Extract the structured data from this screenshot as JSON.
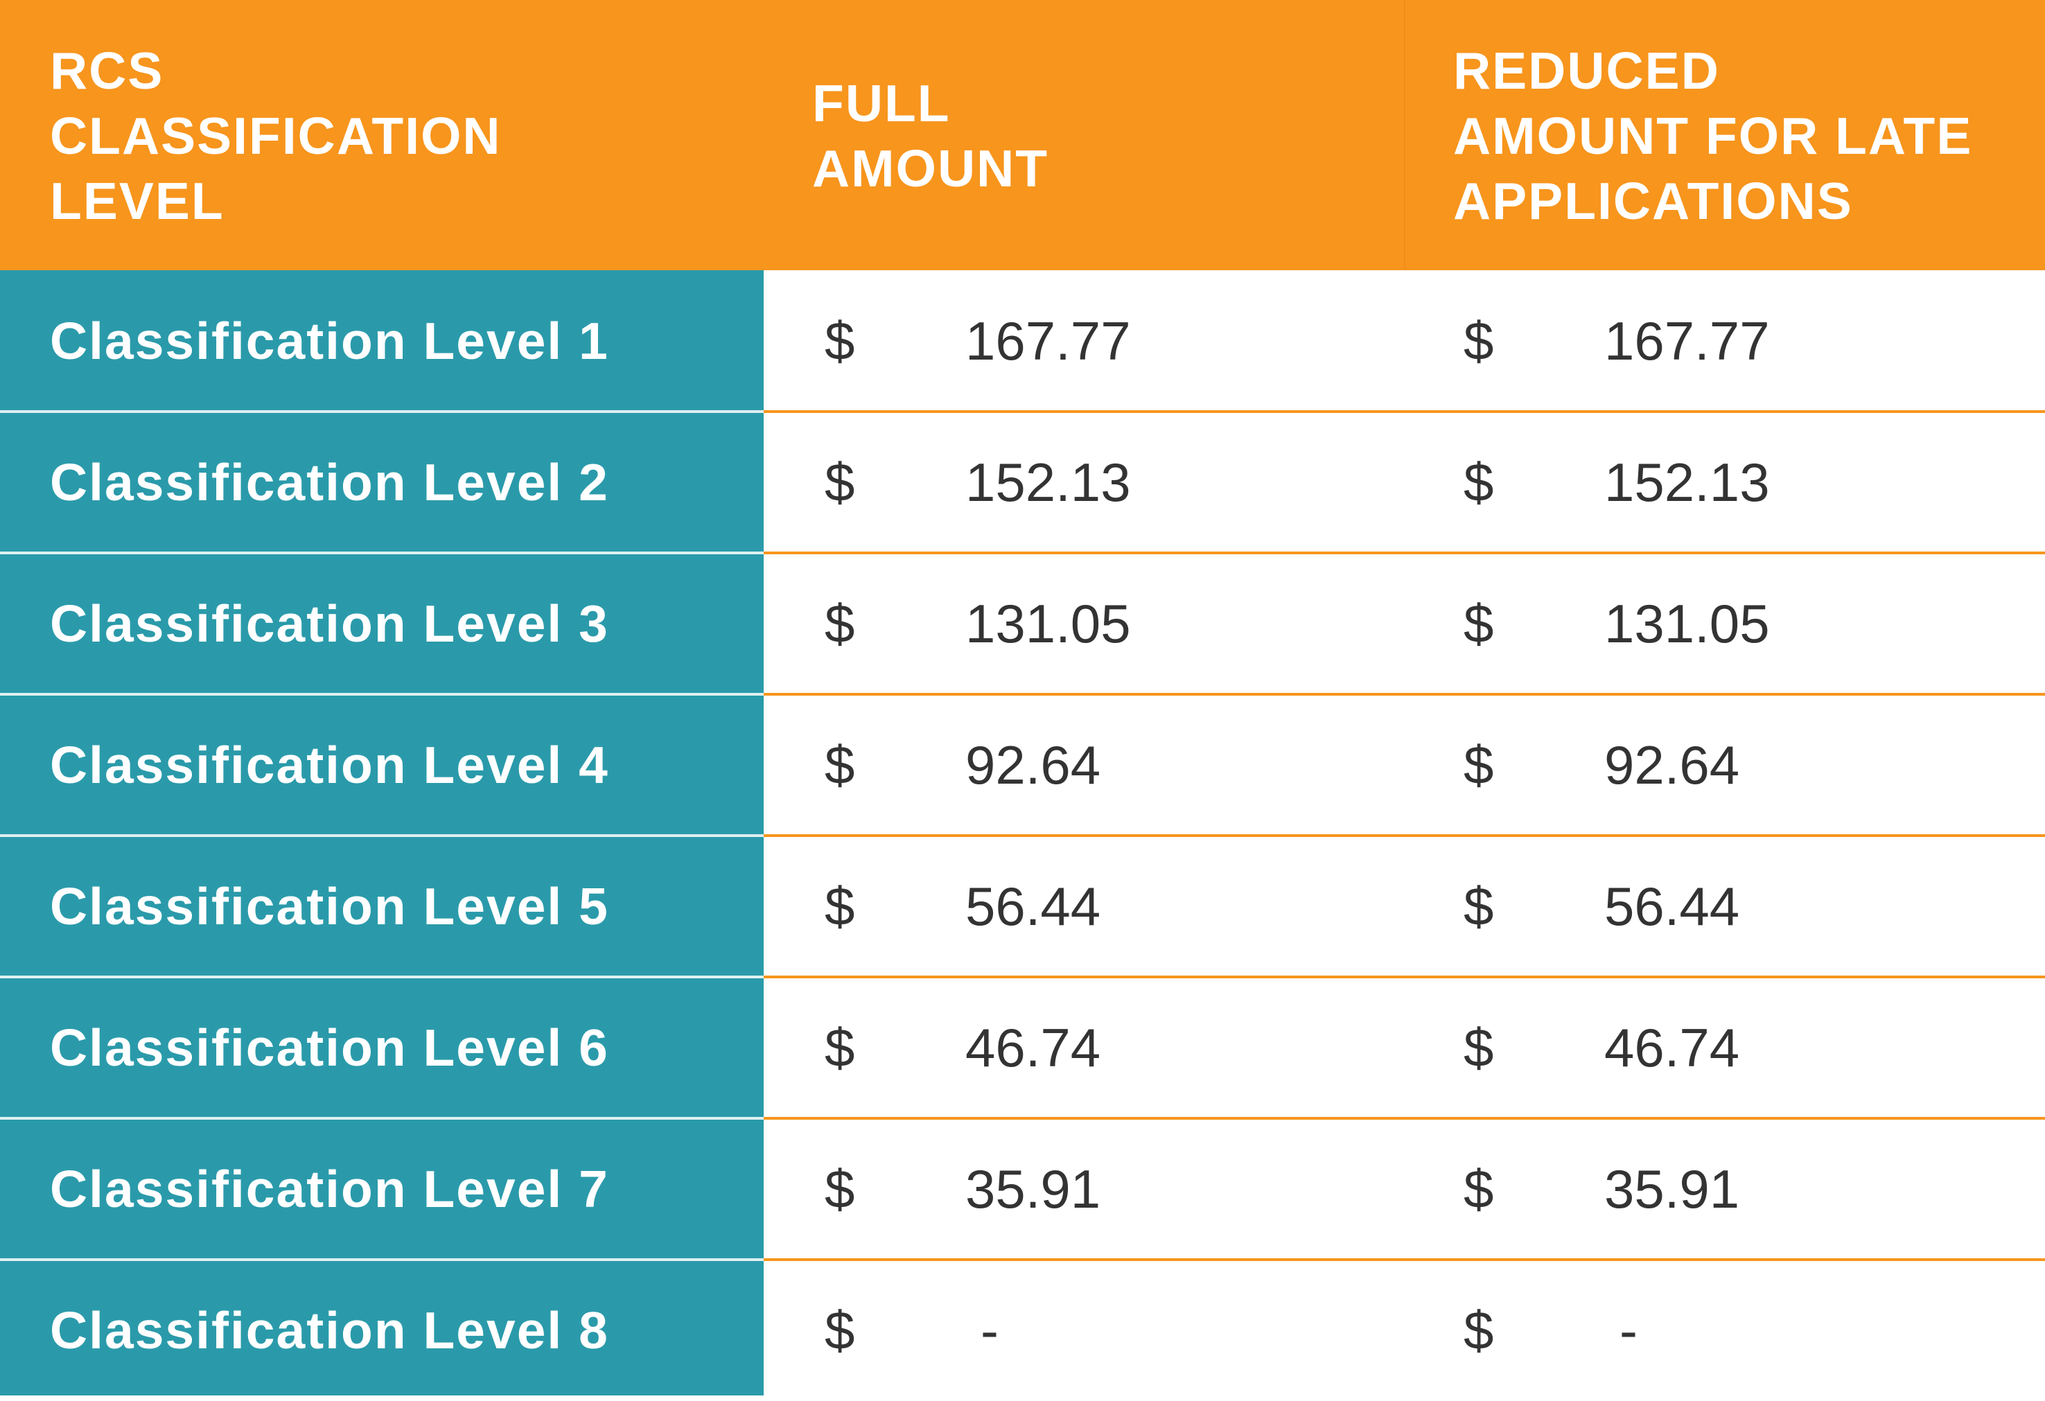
{
  "headers": {
    "level": "RCS\nCLASSIFICATION\nLEVEL",
    "full": "FULL\nAMOUNT",
    "reduced": "REDUCED\nAMOUNT FOR LATE\nAPPLICATIONS"
  },
  "currency_symbol": "$",
  "rows": [
    {
      "label": "Classification Level 1",
      "full": "167.77",
      "reduced": "167.77"
    },
    {
      "label": "Classification Level 2",
      "full": "152.13",
      "reduced": "152.13"
    },
    {
      "label": "Classification Level 3",
      "full": "131.05",
      "reduced": "131.05"
    },
    {
      "label": "Classification Level 4",
      "full": "92.64",
      "reduced": "92.64"
    },
    {
      "label": "Classification Level 5",
      "full": "56.44",
      "reduced": "56.44"
    },
    {
      "label": "Classification Level 6",
      "full": "46.74",
      "reduced": "46.74"
    },
    {
      "label": "Classification Level 7",
      "full": "35.91",
      "reduced": "35.91"
    },
    {
      "label": "Classification Level 8",
      "full": "-",
      "reduced": "-"
    }
  ],
  "colors": {
    "header_bg": "#F7951D",
    "label_col_bg": "#2A9AAA",
    "value_text": "#333333",
    "row_separator": "#F7951D"
  }
}
